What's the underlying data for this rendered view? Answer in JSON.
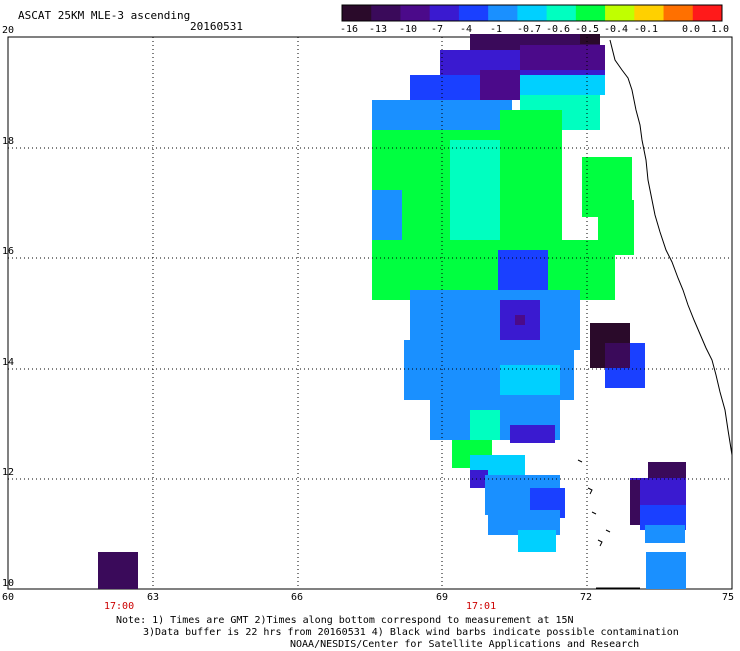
{
  "header": {
    "title": "ASCAT 25KM MLE-3 ascending",
    "date": "20160531"
  },
  "colorbar": {
    "labels": [
      "-16",
      "-13",
      "-10",
      "-7",
      "-4",
      "-1",
      "-0.7",
      "-0.6",
      "-0.5",
      "-0.4",
      "-0.1",
      "0.0",
      "1.0"
    ],
    "colors": [
      "#2a0a2a",
      "#3a0a5a",
      "#4b0a8a",
      "#3a1ad0",
      "#1a40ff",
      "#1a90ff",
      "#00d0ff",
      "#00ffc0",
      "#00ff40",
      "#c0ff00",
      "#ffd000",
      "#ff7000",
      "#ff1a1a"
    ]
  },
  "axes": {
    "lat_labels": [
      "20",
      "18",
      "16",
      "14",
      "12",
      "10"
    ],
    "lon_labels": [
      "60",
      "63",
      "66",
      "69",
      "72",
      "75"
    ],
    "time_labels": [
      "17:00",
      "17:01"
    ]
  },
  "notes": {
    "line1": "Note: 1) Times are GMT 2)Times along bottom correspond to measurement at 15N",
    "line2": "3)Data buffer is 22 hrs from 20160531 4) Black wind barbs indicate possible contamination",
    "line3": "NOAA/NESDIS/Center for Satellite Applications and Research"
  }
}
